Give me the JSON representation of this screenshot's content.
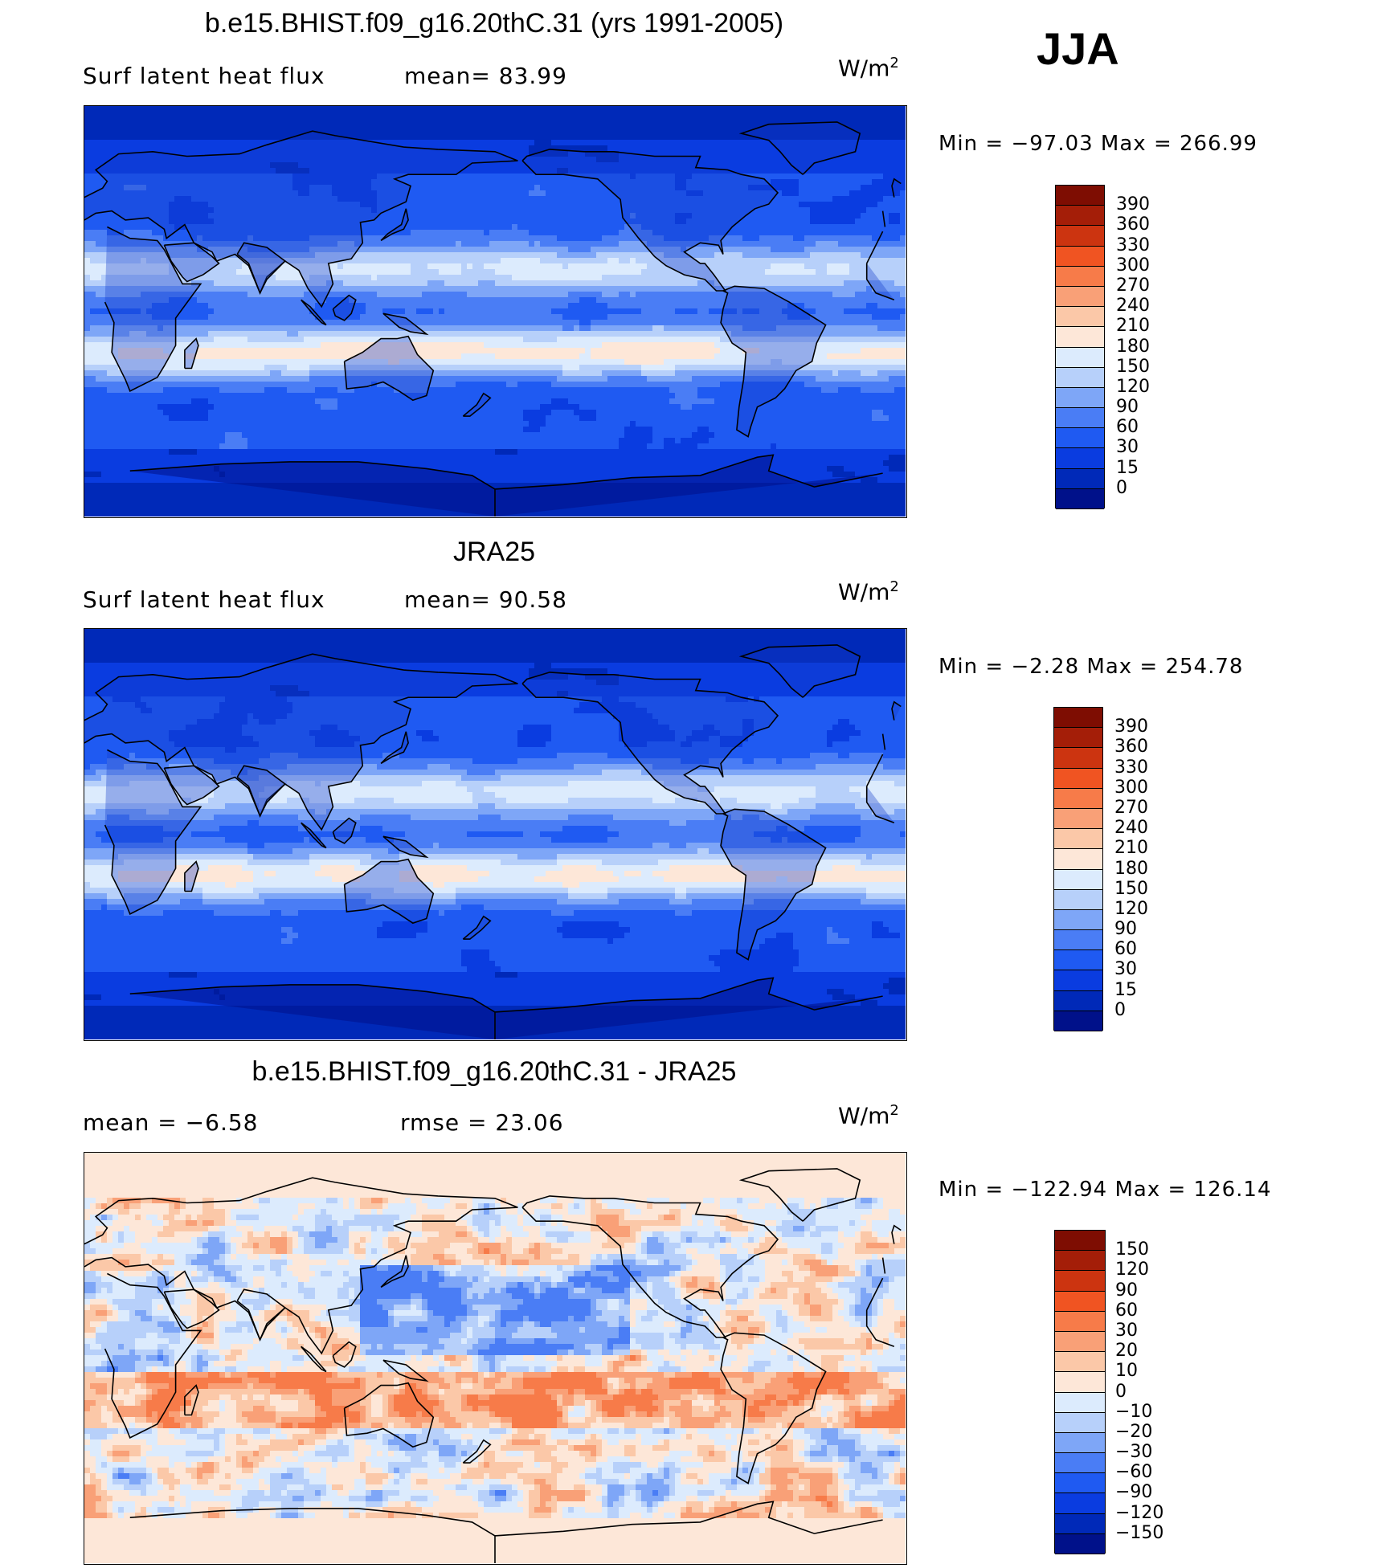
{
  "season": "JJA",
  "panels": [
    {
      "title": "b.e15.BHIST.f09_g16.20thC.31 (yrs 1991-2005)",
      "subtitle_left": "Surf  latent  heat  flux",
      "subtitle_mid": "mean=   83.99",
      "units": "W/m",
      "units_exp": "2",
      "minmax": "Min  =  −97.03  Max  =  266.99",
      "map_kind": "model"
    },
    {
      "title": "JRA25",
      "subtitle_left": "Surf  latent  heat  flux",
      "subtitle_mid": "mean=   90.58",
      "units": "W/m",
      "units_exp": "2",
      "minmax": "Min  =   −2.28  Max  =  254.78",
      "map_kind": "obs"
    },
    {
      "title": "b.e15.BHIST.f09_g16.20thC.31 - JRA25",
      "subtitle_left": "mean  =    −6.58",
      "subtitle_mid": "rmse  =    23.06",
      "units": "W/m",
      "units_exp": "2",
      "minmax": "Min  =  −122.94  Max  =  126.14",
      "map_kind": "diff"
    }
  ],
  "chart_data": [
    {
      "type": "heatmap",
      "title": "b.e15.BHIST.f09_g16.20thC.31 (yrs 1991-2005)",
      "variable": "Surf latent heat flux",
      "units": "W/m2",
      "mean": 83.99,
      "min": -97.03,
      "max": 266.99,
      "colorbar_levels": [
        0,
        15,
        30,
        60,
        90,
        120,
        150,
        180,
        210,
        240,
        270,
        300,
        330,
        360,
        390
      ],
      "colorbar_colors": [
        "#00118a",
        "#0029b8",
        "#0a3ce0",
        "#1f5af2",
        "#4a7df5",
        "#7ea6f7",
        "#b7d0fa",
        "#dcebfd",
        "#fde7d8",
        "#fbc8a8",
        "#f9a077",
        "#f77b49",
        "#f05422",
        "#cc3410",
        "#a41e08",
        "#7e0d02"
      ]
    },
    {
      "type": "heatmap",
      "title": "JRA25",
      "variable": "Surf latent heat flux",
      "units": "W/m2",
      "mean": 90.58,
      "min": -2.28,
      "max": 254.78,
      "colorbar_levels": [
        0,
        15,
        30,
        60,
        90,
        120,
        150,
        180,
        210,
        240,
        270,
        300,
        330,
        360,
        390
      ],
      "colorbar_colors": [
        "#00118a",
        "#0029b8",
        "#0a3ce0",
        "#1f5af2",
        "#4a7df5",
        "#7ea6f7",
        "#b7d0fa",
        "#dcebfd",
        "#fde7d8",
        "#fbc8a8",
        "#f9a077",
        "#f77b49",
        "#f05422",
        "#cc3410",
        "#a41e08",
        "#7e0d02"
      ]
    },
    {
      "type": "heatmap",
      "title": "b.e15.BHIST.f09_g16.20thC.31 - JRA25",
      "units": "W/m2",
      "mean": -6.58,
      "rmse": 23.06,
      "min": -122.94,
      "max": 126.14,
      "colorbar_levels": [
        -150,
        -120,
        -90,
        -60,
        -30,
        -20,
        -10,
        0,
        10,
        20,
        30,
        60,
        90,
        120,
        150
      ],
      "colorbar_colors": [
        "#00118a",
        "#0029b8",
        "#0a3ce0",
        "#1f5af2",
        "#4a7df5",
        "#7ea6f7",
        "#b7d0fa",
        "#dcebfd",
        "#fde7d8",
        "#fbc8a8",
        "#f9a077",
        "#f77b49",
        "#f05422",
        "#cc3410",
        "#a41e08",
        "#7e0d02"
      ]
    }
  ]
}
